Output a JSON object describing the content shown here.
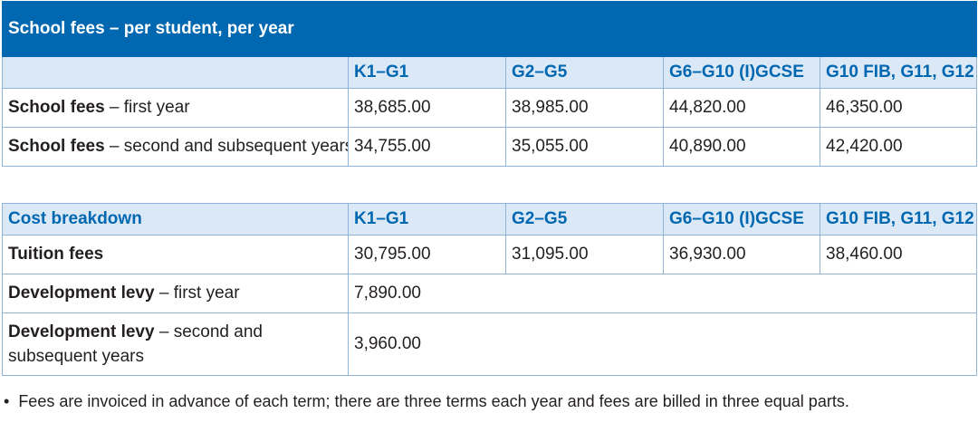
{
  "table1": {
    "title": "School fees – per student, per year",
    "headers": [
      "K1–G1",
      "G2–G5",
      "G6–G10 (I)GCSE",
      "G10 FIB, G11, G12"
    ],
    "rows": [
      {
        "label_bold": "School fees",
        "label_rest": " – first year",
        "values": [
          "38,685.00",
          "38,985.00",
          "44,820.00",
          "46,350.00"
        ]
      },
      {
        "label_bold": "School fees",
        "label_rest": " – second and subsequent years",
        "values": [
          "34,755.00",
          "35,055.00",
          "40,890.00",
          "42,420.00"
        ]
      }
    ]
  },
  "table2": {
    "header_label": "Cost breakdown",
    "headers": [
      "K1–G1",
      "G2–G5",
      "G6–G10 (I)GCSE",
      "G10 FIB, G11, G12"
    ],
    "tuition": {
      "label": "Tuition fees",
      "values": [
        "30,795.00",
        "31,095.00",
        "36,930.00",
        "38,460.00"
      ]
    },
    "levy_first": {
      "label_bold": "Development levy",
      "label_rest": " – first year",
      "value": "7,890.00"
    },
    "levy_subsequent": {
      "label_bold": "Development levy",
      "label_rest": " – second and subsequent years",
      "value": "3,960.00"
    }
  },
  "note": {
    "bullet": "•",
    "text": "Fees are invoiced in advance of each term; there are three terms each year and fees are billed in three equal parts."
  }
}
